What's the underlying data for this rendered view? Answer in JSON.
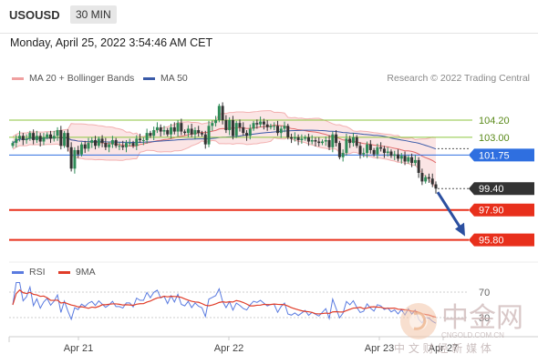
{
  "header": {
    "symbol": "USOUSD",
    "timeframe": "30 MIN"
  },
  "datetime": "Monday, April 25, 2022 3:54:46 AM CET",
  "legend": {
    "bb_label": "MA 20 + Bollinger Bands",
    "ma50_label": "MA 50",
    "copyright": "Research © 2022 Trading Central"
  },
  "rsi_legend": {
    "rsi_label": "RSI",
    "ma9_label": "9MA"
  },
  "colors": {
    "bb": "#f0a0a0",
    "ma50": "#3a5aa8",
    "up": "#2e8b57",
    "down": "#333333",
    "green_level": "#8cc63f",
    "blue_level": "#2f6fe0",
    "red_level": "#e8301c",
    "price_tag": "#333333",
    "arrow": "#2b4fa0",
    "rsi": "#5a7be0",
    "rsi_ma": "#e03c28"
  },
  "watermark": {
    "brand": "中金网",
    "domain": "CNGOLD.COM.CN",
    "tagline": "中 文 财 经 新 媒 体"
  },
  "chart_data": {
    "type": "candlestick",
    "x_tick_labels": [
      "Apr 21",
      "Apr 22",
      "Apr 23",
      "Apr 27"
    ],
    "ylim": [
      94.5,
      106.5
    ],
    "levels": [
      {
        "value": 104.2,
        "label": "104.20",
        "kind": "resistance",
        "style": "line"
      },
      {
        "value": 103.0,
        "label": "103.00",
        "kind": "resistance",
        "style": "line"
      },
      {
        "value": 101.75,
        "label": "101.75",
        "kind": "pivot",
        "style": "tag"
      },
      {
        "value": 99.4,
        "label": "99.40",
        "kind": "last_price",
        "style": "tag"
      },
      {
        "value": 97.9,
        "label": "97.90",
        "kind": "support",
        "style": "tag"
      },
      {
        "value": 95.8,
        "label": "95.80",
        "kind": "support",
        "style": "tag"
      }
    ],
    "closes": [
      102.6,
      102.9,
      103.1,
      102.8,
      102.9,
      103.3,
      102.8,
      103.1,
      102.7,
      103.0,
      103.2,
      102.9,
      103.1,
      103.5,
      102.4,
      103.3,
      102.3,
      100.8,
      102.1,
      101.8,
      102.5,
      102.2,
      102.6,
      102.8,
      102.4,
      102.9,
      102.6,
      102.3,
      102.5,
      102.8,
      102.4,
      102.4,
      102.3,
      102.6,
      102.6,
      102.4,
      102.9,
      102.8,
      102.8,
      103.3,
      103.1,
      103.5,
      103.7,
      103.4,
      103.5,
      103.2,
      103.7,
      103.4,
      104.0,
      103.4,
      103.3,
      103.6,
      103.2,
      103.5,
      103.3,
      103.2,
      102.5,
      103.8,
      104.0,
      104.2,
      105.2,
      104.2,
      103.5,
      104.2,
      103.1,
      104.0,
      103.7,
      103.3,
      103.1,
      103.6,
      104.0,
      103.9,
      104.1,
      103.9,
      103.7,
      103.8,
      103.8,
      103.3,
      103.6,
      103.8,
      103.0,
      102.9,
      103.0,
      102.8,
      102.9,
      103.0,
      102.7,
      102.8,
      102.7,
      102.6,
      102.7,
      102.8,
      102.3,
      103.2,
      102.6,
      101.6,
      101.9,
      102.9,
      102.6,
      103.0,
      102.4,
      101.8,
      101.9,
      102.5,
      102.1,
      101.8,
      102.3,
      102.2,
      101.9,
      102.0,
      101.7,
      101.8,
      101.5,
      101.7,
      101.3,
      101.6,
      101.2,
      101.4,
      100.5,
      99.9,
      100.2,
      100.1,
      99.7,
      99.4
    ],
    "rsi": {
      "ylim": [
        0,
        100
      ],
      "label_70": "70",
      "label_30": "30"
    }
  }
}
